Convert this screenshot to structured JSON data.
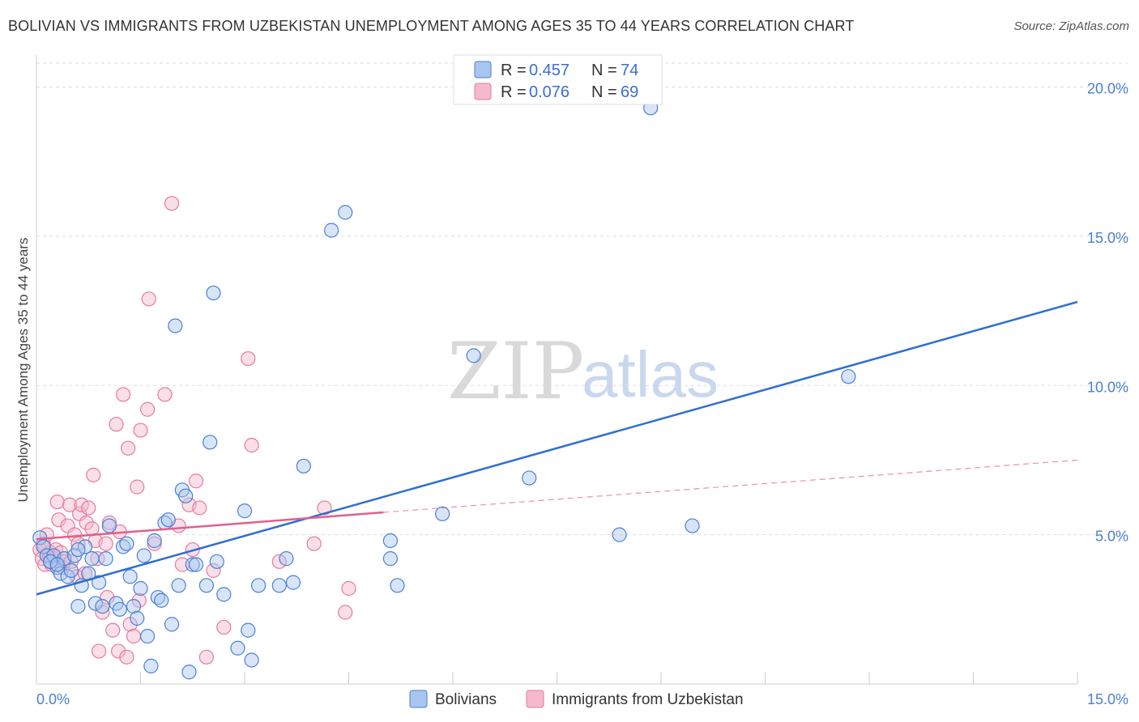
{
  "title": "BOLIVIAN VS IMMIGRANTS FROM UZBEKISTAN UNEMPLOYMENT AMONG AGES 35 TO 44 YEARS CORRELATION CHART",
  "source": "Source: ZipAtlas.com",
  "watermark": {
    "zip": "ZIP",
    "atlas": "atlas"
  },
  "colors": {
    "blue": "#4a7fd4",
    "blue_fill": "#a9c6f0",
    "blue_line": "#2f6fcf",
    "pink": "#e57a9e",
    "pink_fill": "#f5b9cd",
    "pink_line": "#e0608a",
    "grid": "#dddddd"
  },
  "legend": {
    "rows": [
      {
        "r_label": "R = ",
        "r_value": "0.457",
        "n_label": "N = ",
        "n_value": "74",
        "series": "Bolivians"
      },
      {
        "r_label": "R = ",
        "r_value": "0.076",
        "n_label": "N = ",
        "n_value": "69",
        "series": "Immigrants from Uzbekistan"
      }
    ]
  },
  "bottom_legend": [
    "Bolivians",
    "Immigrants from Uzbekistan"
  ],
  "chart_data": {
    "type": "scatter",
    "title": "BOLIVIAN VS IMMIGRANTS FROM UZBEKISTAN UNEMPLOYMENT AMONG AGES 35 TO 44 YEARS CORRELATION CHART",
    "xlabel": "",
    "ylabel": "Unemployment Among Ages 35 to 44 years",
    "xlim": [
      0,
      15
    ],
    "ylim": [
      0,
      20.8
    ],
    "x_tick_labels": [
      "0.0%",
      "15.0%"
    ],
    "y_ticks": [
      5,
      10,
      15,
      20
    ],
    "y_tick_labels": [
      "5.0%",
      "10.0%",
      "15.0%",
      "20.0%"
    ],
    "grid": true,
    "series": [
      {
        "name": "Bolivians",
        "R": 0.457,
        "N": 74,
        "trend": {
          "x0": 0,
          "y0": 3.0,
          "x1": 15,
          "y1": 12.8,
          "style": "solid"
        },
        "points": [
          [
            0.05,
            4.9
          ],
          [
            0.1,
            4.6
          ],
          [
            0.15,
            4.3
          ],
          [
            0.2,
            4.1
          ],
          [
            0.25,
            4.3
          ],
          [
            0.3,
            3.9
          ],
          [
            0.35,
            3.7
          ],
          [
            0.4,
            4.2
          ],
          [
            0.45,
            3.6
          ],
          [
            0.5,
            3.8
          ],
          [
            0.55,
            4.3
          ],
          [
            0.6,
            2.6
          ],
          [
            0.65,
            3.3
          ],
          [
            0.7,
            4.6
          ],
          [
            0.75,
            3.7
          ],
          [
            0.8,
            4.2
          ],
          [
            0.85,
            2.7
          ],
          [
            0.9,
            3.4
          ],
          [
            0.95,
            2.6
          ],
          [
            1.0,
            4.2
          ],
          [
            1.05,
            5.3
          ],
          [
            1.15,
            2.7
          ],
          [
            1.2,
            2.5
          ],
          [
            1.25,
            4.6
          ],
          [
            1.3,
            4.7
          ],
          [
            1.35,
            3.6
          ],
          [
            1.4,
            2.6
          ],
          [
            1.45,
            2.2
          ],
          [
            1.5,
            3.2
          ],
          [
            1.55,
            4.3
          ],
          [
            1.6,
            1.6
          ],
          [
            1.65,
            0.6
          ],
          [
            1.7,
            4.8
          ],
          [
            1.75,
            2.9
          ],
          [
            1.8,
            2.8
          ],
          [
            1.85,
            5.4
          ],
          [
            1.9,
            5.5
          ],
          [
            1.95,
            2.0
          ],
          [
            2.0,
            12.0
          ],
          [
            2.05,
            3.3
          ],
          [
            2.1,
            6.5
          ],
          [
            2.15,
            6.3
          ],
          [
            2.2,
            0.4
          ],
          [
            2.25,
            4.0
          ],
          [
            2.3,
            4.0
          ],
          [
            2.45,
            3.3
          ],
          [
            2.5,
            8.1
          ],
          [
            2.55,
            13.1
          ],
          [
            2.6,
            4.1
          ],
          [
            2.7,
            3.0
          ],
          [
            2.9,
            1.2
          ],
          [
            3.0,
            5.8
          ],
          [
            3.05,
            1.8
          ],
          [
            3.1,
            0.8
          ],
          [
            3.2,
            3.3
          ],
          [
            3.5,
            3.3
          ],
          [
            3.6,
            4.2
          ],
          [
            3.7,
            3.4
          ],
          [
            3.85,
            7.3
          ],
          [
            4.25,
            15.2
          ],
          [
            4.45,
            15.8
          ],
          [
            5.1,
            4.2
          ],
          [
            5.1,
            4.8
          ],
          [
            5.2,
            3.3
          ],
          [
            5.85,
            5.7
          ],
          [
            6.3,
            11.0
          ],
          [
            7.1,
            6.9
          ],
          [
            8.4,
            5.0
          ],
          [
            9.45,
            5.3
          ],
          [
            11.7,
            10.3
          ],
          [
            8.85,
            19.3
          ],
          [
            0.6,
            4.5
          ],
          [
            0.2,
            4.1
          ],
          [
            0.3,
            4.0
          ]
        ]
      },
      {
        "name": "Immigrants from Uzbekistan",
        "R": 0.076,
        "N": 69,
        "trend": {
          "x0": 0,
          "y0": 4.85,
          "x1": 5.0,
          "y1": 5.75,
          "style": "solid",
          "extension": {
            "x1": 15,
            "y1": 7.5,
            "style": "dashed"
          }
        },
        "points": [
          [
            0.05,
            4.5
          ],
          [
            0.08,
            4.2
          ],
          [
            0.1,
            4.7
          ],
          [
            0.12,
            4.0
          ],
          [
            0.15,
            5.0
          ],
          [
            0.18,
            4.3
          ],
          [
            0.2,
            4.4
          ],
          [
            0.22,
            4.0
          ],
          [
            0.25,
            4.2
          ],
          [
            0.28,
            4.5
          ],
          [
            0.3,
            6.1
          ],
          [
            0.32,
            5.5
          ],
          [
            0.35,
            4.4
          ],
          [
            0.38,
            3.9
          ],
          [
            0.4,
            4.1
          ],
          [
            0.45,
            5.3
          ],
          [
            0.48,
            6.0
          ],
          [
            0.5,
            4.1
          ],
          [
            0.55,
            5.0
          ],
          [
            0.58,
            3.6
          ],
          [
            0.6,
            4.7
          ],
          [
            0.62,
            5.7
          ],
          [
            0.65,
            6.0
          ],
          [
            0.7,
            3.7
          ],
          [
            0.72,
            5.4
          ],
          [
            0.75,
            5.9
          ],
          [
            0.8,
            5.2
          ],
          [
            0.82,
            7.0
          ],
          [
            0.85,
            4.8
          ],
          [
            0.88,
            4.2
          ],
          [
            0.9,
            1.1
          ],
          [
            0.95,
            2.4
          ],
          [
            1.0,
            4.7
          ],
          [
            1.02,
            2.9
          ],
          [
            1.05,
            5.4
          ],
          [
            1.1,
            1.8
          ],
          [
            1.15,
            8.7
          ],
          [
            1.18,
            1.1
          ],
          [
            1.2,
            5.1
          ],
          [
            1.25,
            9.7
          ],
          [
            1.3,
            0.9
          ],
          [
            1.32,
            7.9
          ],
          [
            1.35,
            2.0
          ],
          [
            1.4,
            1.6
          ],
          [
            1.45,
            6.6
          ],
          [
            1.48,
            2.8
          ],
          [
            1.5,
            8.5
          ],
          [
            1.6,
            9.2
          ],
          [
            1.62,
            12.9
          ],
          [
            1.7,
            4.7
          ],
          [
            1.85,
            9.7
          ],
          [
            1.95,
            16.1
          ],
          [
            2.05,
            5.3
          ],
          [
            2.1,
            4.0
          ],
          [
            2.2,
            6.0
          ],
          [
            2.25,
            4.5
          ],
          [
            2.3,
            6.8
          ],
          [
            2.35,
            5.9
          ],
          [
            2.45,
            0.9
          ],
          [
            2.55,
            3.8
          ],
          [
            2.7,
            1.9
          ],
          [
            3.05,
            10.9
          ],
          [
            3.1,
            8.0
          ],
          [
            3.5,
            4.1
          ],
          [
            4.0,
            4.7
          ],
          [
            4.15,
            5.9
          ],
          [
            4.45,
            2.4
          ],
          [
            4.5,
            3.2
          ],
          [
            0.1,
            4.6
          ]
        ]
      }
    ]
  }
}
